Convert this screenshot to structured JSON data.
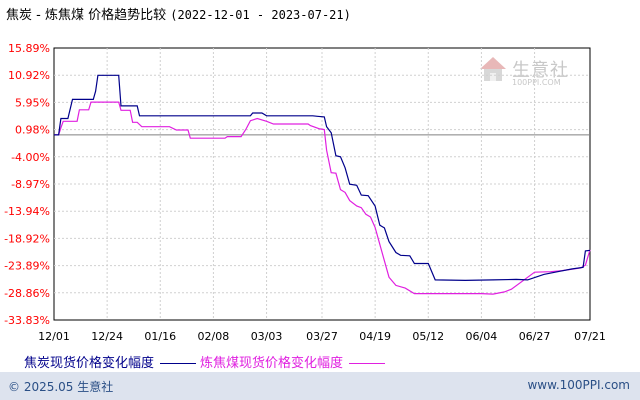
{
  "title": {
    "main": "焦炭 - 炼焦煤 价格趋势比较",
    "range": "(2022-12-01 - 2023-07-21)"
  },
  "logo": {
    "text": "生意社",
    "sub": "100PPI.COM"
  },
  "footer": {
    "left": "© 2025.05 生意社",
    "right": "www.100PPI.com"
  },
  "colors": {
    "series1": "#00008b",
    "series2": "#e020e0",
    "axis": "#000000",
    "grid": "#d0d0d0",
    "ylabel": "#ff0000",
    "xlabel": "#000000",
    "footer_bg": "#dde3ee",
    "footer_text": "#2a4f86"
  },
  "chart_data": {
    "type": "line",
    "title": "焦炭 - 炼焦煤 价格趋势比较",
    "ylim": [
      -33.83,
      15.89
    ],
    "yticks": [
      "15.89%",
      "10.92%",
      "5.95%",
      "0.98%",
      "-4.00%",
      "-8.97%",
      "-13.94%",
      "-18.92%",
      "-23.89%",
      "-28.86%",
      "-33.83%"
    ],
    "ytick_values": [
      15.89,
      10.92,
      5.95,
      0.98,
      -4.0,
      -8.97,
      -13.94,
      -18.92,
      -23.89,
      -28.86,
      -33.83
    ],
    "xticks": [
      "12/01",
      "12/24",
      "01/16",
      "02/08",
      "03/03",
      "03/27",
      "04/19",
      "05/12",
      "06/04",
      "06/27",
      "07/21"
    ],
    "xtick_days": [
      0,
      23,
      46,
      69,
      92,
      116,
      139,
      162,
      185,
      208,
      232
    ],
    "grid": true,
    "legend_position": "bottom",
    "series": [
      {
        "name": "焦炭现货价格变化幅度",
        "color": "#00008b",
        "points": [
          [
            0,
            0
          ],
          [
            2,
            0
          ],
          [
            3,
            3
          ],
          [
            6,
            3
          ],
          [
            8,
            6.5
          ],
          [
            17,
            6.5
          ],
          [
            18,
            8
          ],
          [
            19,
            10.9
          ],
          [
            28,
            10.9
          ],
          [
            29,
            5.3
          ],
          [
            36,
            5.3
          ],
          [
            37,
            3.5
          ],
          [
            58,
            3.5
          ],
          [
            59,
            3.5
          ],
          [
            82,
            3.5
          ],
          [
            85,
            3.5
          ],
          [
            86,
            4.0
          ],
          [
            90,
            4.0
          ],
          [
            92,
            3.5
          ],
          [
            112,
            3.5
          ],
          [
            114,
            3.4
          ],
          [
            117,
            3.3
          ],
          [
            118,
            1.5
          ],
          [
            120,
            0.4
          ],
          [
            122,
            -3.8
          ],
          [
            124,
            -4.0
          ],
          [
            126,
            -6.0
          ],
          [
            128,
            -9.0
          ],
          [
            131,
            -9.2
          ],
          [
            133,
            -11.0
          ],
          [
            136,
            -11.1
          ],
          [
            139,
            -13.0
          ],
          [
            141,
            -16.5
          ],
          [
            143,
            -17.0
          ],
          [
            145,
            -19.5
          ],
          [
            148,
            -21.5
          ],
          [
            150,
            -22.0
          ],
          [
            154,
            -22.1
          ],
          [
            156,
            -23.5
          ],
          [
            162,
            -23.5
          ],
          [
            165,
            -26.5
          ],
          [
            178,
            -26.6
          ],
          [
            190,
            -26.5
          ],
          [
            200,
            -26.4
          ],
          [
            205,
            -26.5
          ],
          [
            212,
            -25.5
          ],
          [
            218,
            -25.0
          ],
          [
            224,
            -24.5
          ],
          [
            229,
            -24.2
          ],
          [
            230,
            -21.2
          ],
          [
            232,
            -21.1
          ]
        ]
      },
      {
        "name": "炼焦煤现货价格变化幅度",
        "color": "#e020e0",
        "points": [
          [
            0,
            0
          ],
          [
            2,
            0
          ],
          [
            3,
            1.3
          ],
          [
            4,
            2.5
          ],
          [
            10,
            2.5
          ],
          [
            11,
            4.6
          ],
          [
            15,
            4.6
          ],
          [
            16,
            6.0
          ],
          [
            28,
            6.0
          ],
          [
            29,
            4.5
          ],
          [
            33,
            4.5
          ],
          [
            34,
            2.3
          ],
          [
            36,
            2.3
          ],
          [
            38,
            1.5
          ],
          [
            50,
            1.5
          ],
          [
            53,
            0.9
          ],
          [
            58,
            0.9
          ],
          [
            59,
            -0.6
          ],
          [
            74,
            -0.6
          ],
          [
            75,
            -0.3
          ],
          [
            81,
            -0.3
          ],
          [
            83,
            1.0
          ],
          [
            85,
            2.6
          ],
          [
            88,
            3.0
          ],
          [
            92,
            2.5
          ],
          [
            95,
            2.0
          ],
          [
            110,
            2.0
          ],
          [
            111,
            1.7
          ],
          [
            115,
            1.1
          ],
          [
            117,
            1.0
          ],
          [
            118,
            -2.8
          ],
          [
            120,
            -6.9
          ],
          [
            122,
            -7.0
          ],
          [
            124,
            -10.0
          ],
          [
            126,
            -10.5
          ],
          [
            128,
            -12.0
          ],
          [
            131,
            -13.0
          ],
          [
            133,
            -13.3
          ],
          [
            135,
            -14.5
          ],
          [
            137,
            -15.0
          ],
          [
            139,
            -16.9
          ],
          [
            141,
            -20.0
          ],
          [
            143,
            -23.0
          ],
          [
            145,
            -26.0
          ],
          [
            148,
            -27.5
          ],
          [
            152,
            -28.0
          ],
          [
            156,
            -29.0
          ],
          [
            185,
            -29.0
          ],
          [
            190,
            -29.1
          ],
          [
            195,
            -28.7
          ],
          [
            198,
            -28.2
          ],
          [
            208,
            -25.1
          ],
          [
            215,
            -25.0
          ],
          [
            220,
            -24.8
          ],
          [
            228,
            -24.3
          ],
          [
            230,
            -23.8
          ],
          [
            232,
            -21.0
          ]
        ]
      }
    ]
  }
}
